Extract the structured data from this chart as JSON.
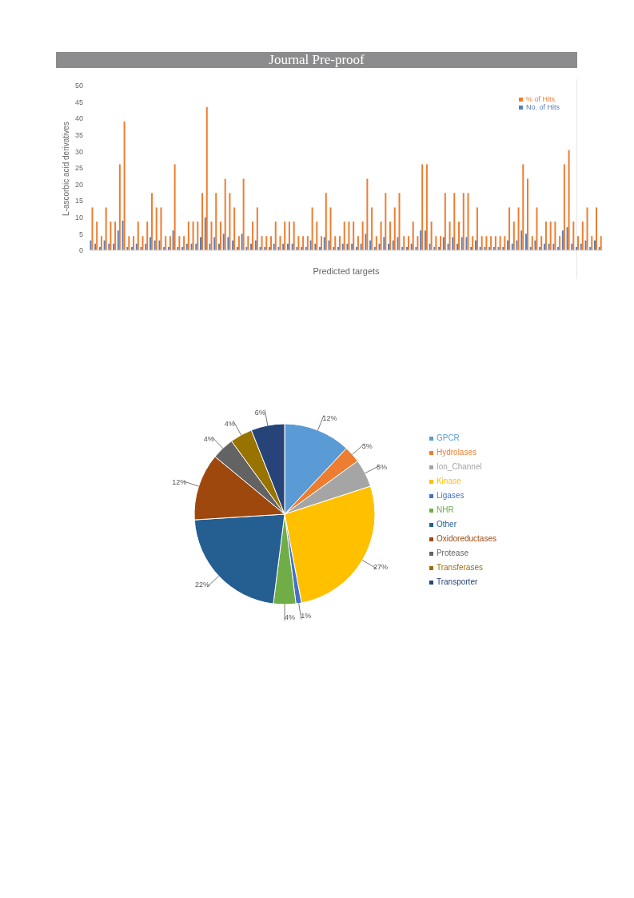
{
  "chart_data": [
    {
      "type": "bar",
      "title": "Journal Pre-proof",
      "ylabel": "L-ascorbic acid derivatives",
      "xlabel": "Predicted targets",
      "categories": [
        null,
        null,
        null,
        null,
        null,
        null,
        null,
        null,
        null,
        null,
        null,
        null,
        null,
        null,
        null,
        null,
        null,
        null,
        null,
        null,
        null,
        null,
        null,
        null,
        null,
        null,
        null,
        null,
        null,
        null,
        null,
        null,
        null,
        null,
        null,
        null,
        null,
        null,
        null,
        null,
        null,
        null,
        null,
        null,
        null,
        null,
        null,
        null,
        null,
        null,
        null,
        null,
        null,
        null,
        null,
        null,
        null,
        null,
        null,
        null,
        null,
        null,
        null,
        null,
        null,
        null,
        null,
        null,
        null,
        null,
        null,
        null,
        null,
        null,
        null,
        null,
        null,
        null,
        null,
        null,
        null,
        null,
        null,
        null,
        null,
        null,
        null,
        null,
        null,
        null,
        null,
        null,
        null,
        null,
        null,
        null,
        null,
        null,
        null,
        null,
        null,
        null,
        null,
        null,
        null,
        null,
        null,
        null,
        null,
        null,
        null,
        null
      ],
      "series": [
        {
          "name": "No. of Hits",
          "color": "#5b7fb8",
          "values": [
            3,
            2,
            1,
            3,
            2,
            2,
            6,
            9,
            1,
            1,
            2,
            1,
            2,
            4,
            3,
            3,
            1,
            1,
            6,
            1,
            1,
            2,
            2,
            2,
            4,
            10,
            2,
            4,
            2,
            5,
            4,
            3,
            1,
            5,
            1,
            2,
            3,
            1,
            1,
            1,
            2,
            1,
            2,
            2,
            2,
            1,
            1,
            1,
            3,
            2,
            1,
            4,
            3,
            1,
            1,
            2,
            2,
            2,
            1,
            2,
            5,
            3,
            1,
            2,
            4,
            2,
            3,
            4,
            1,
            1,
            2,
            1,
            6,
            6,
            2,
            1,
            1,
            4,
            2,
            4,
            2,
            4,
            4,
            1,
            3,
            1,
            1,
            1,
            1,
            1,
            1,
            3,
            2,
            3,
            6,
            5,
            1,
            3,
            1,
            2,
            2,
            2,
            1,
            6,
            7,
            2,
            1,
            2,
            3,
            1,
            3,
            1
          ]
        },
        {
          "name": "% of Hits",
          "color": "#ed7d31",
          "values": [
            13,
            8.7,
            4.3,
            13,
            8.7,
            8.7,
            26.1,
            39.1,
            4.3,
            4.3,
            8.7,
            4.3,
            8.7,
            17.4,
            13,
            13,
            4.3,
            4.3,
            26.1,
            4.3,
            4.3,
            8.7,
            8.7,
            8.7,
            17.4,
            43.5,
            8.7,
            17.4,
            8.7,
            21.7,
            17.4,
            13,
            4.3,
            21.7,
            4.3,
            8.7,
            13,
            4.3,
            4.3,
            4.3,
            8.7,
            4.3,
            8.7,
            8.7,
            8.7,
            4.3,
            4.3,
            4.3,
            13,
            8.7,
            4.3,
            17.4,
            13,
            4.3,
            4.3,
            8.7,
            8.7,
            8.7,
            4.3,
            8.7,
            21.7,
            13,
            4.3,
            8.7,
            17.4,
            8.7,
            13,
            17.4,
            4.3,
            4.3,
            8.7,
            4.3,
            26.1,
            26.1,
            8.7,
            4.3,
            4.3,
            17.4,
            8.7,
            17.4,
            8.7,
            17.4,
            17.4,
            4.3,
            13,
            4.3,
            4.3,
            4.3,
            4.3,
            4.3,
            4.3,
            13,
            8.7,
            13,
            26.1,
            21.7,
            4.3,
            13,
            4.3,
            8.7,
            8.7,
            8.7,
            4.3,
            26.1,
            30.4,
            8.7,
            4.3,
            8.7,
            13,
            4.3,
            13,
            4.3
          ]
        }
      ],
      "ylim": [
        0,
        50
      ],
      "yticks": [
        0,
        5,
        10,
        15,
        20,
        25,
        30,
        35,
        40,
        45,
        50
      ],
      "grid": false,
      "legend": "top right"
    },
    {
      "type": "pie",
      "categories": [
        "GPCR",
        "Hydrolases",
        "Ion_Channel",
        "Kinase",
        "Ligases",
        "NHR",
        "Other",
        "Oxidoreductases",
        "Protease",
        "Transferases",
        "Transporter"
      ],
      "values": [
        12,
        3,
        5,
        27,
        1,
        4,
        22,
        12,
        4,
        4,
        6
      ],
      "colors": [
        "#5b9bd5",
        "#ed7d31",
        "#a5a5a5",
        "#ffc000",
        "#4472c4",
        "#70ad47",
        "#255e91",
        "#9e480e",
        "#636363",
        "#997300",
        "#264478"
      ],
      "value_labels": [
        "12%",
        "3%",
        "5%",
        "27%",
        "1%",
        "4%",
        "22%",
        "12%",
        "4%",
        "4%",
        "6%"
      ],
      "legend": "right"
    }
  ]
}
